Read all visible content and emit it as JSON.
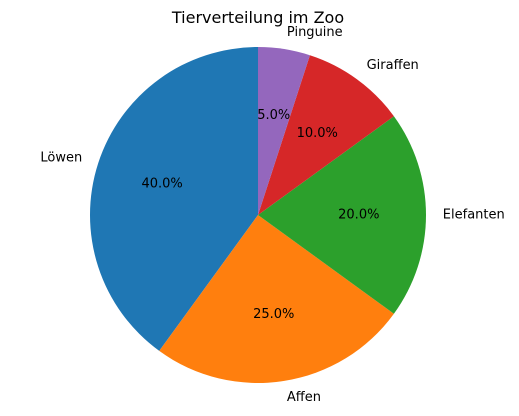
{
  "chart_data": {
    "type": "pie",
    "title": "Tierverteilung im Zoo",
    "start_angle_deg": 90,
    "direction": "counterclockwise",
    "slices": [
      {
        "label": "Löwen",
        "value": 40.0,
        "pct_text": "40.0%",
        "color": "#1f77b4"
      },
      {
        "label": "Affen",
        "value": 25.0,
        "pct_text": "25.0%",
        "color": "#ff7f0e"
      },
      {
        "label": "Elefanten",
        "value": 20.0,
        "pct_text": "20.0%",
        "color": "#2ca02c"
      },
      {
        "label": "Giraffen",
        "value": 10.0,
        "pct_text": "10.0%",
        "color": "#d62728"
      },
      {
        "label": "Pinguine",
        "value": 5.0,
        "pct_text": "5.0%",
        "color": "#9467bd"
      }
    ]
  }
}
